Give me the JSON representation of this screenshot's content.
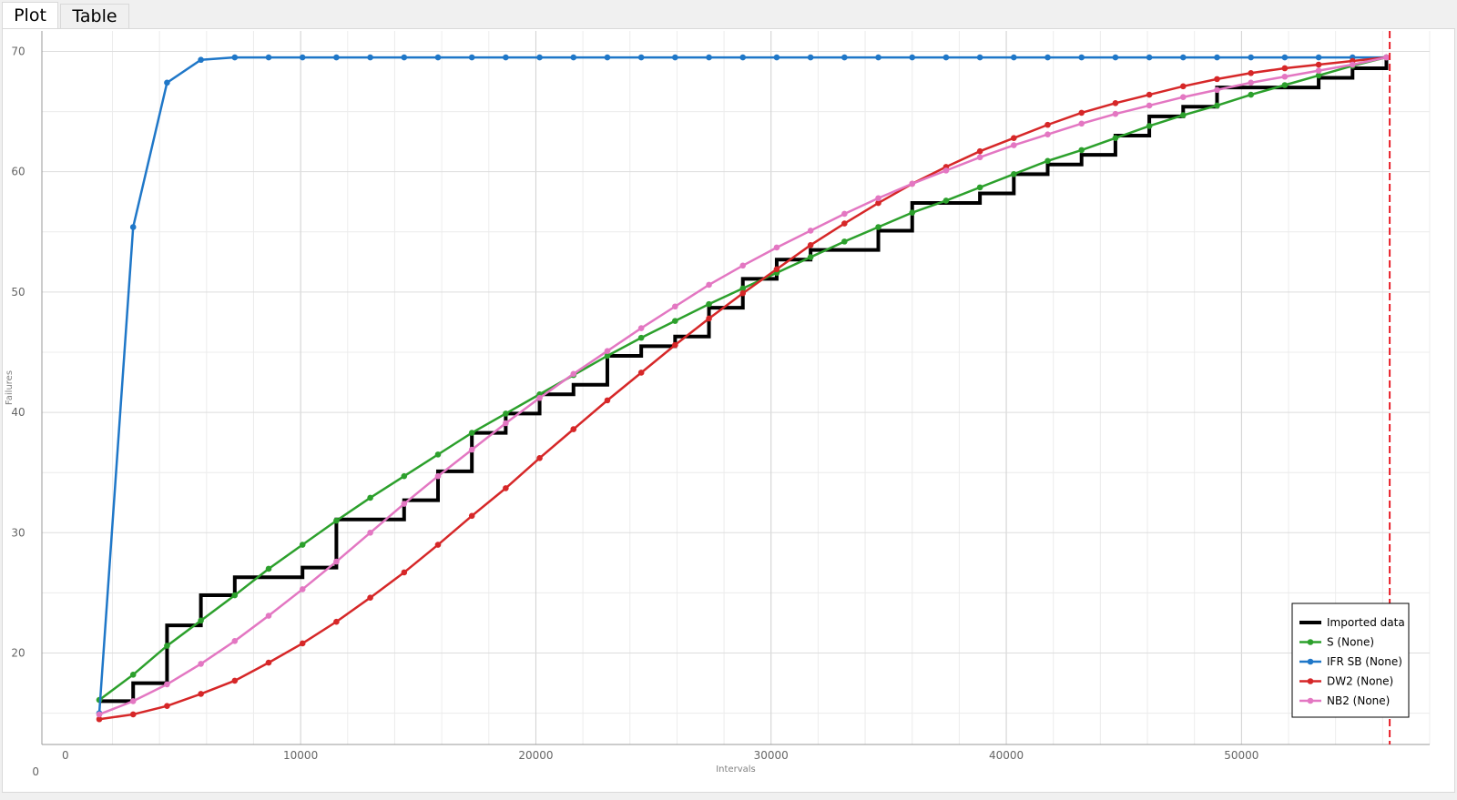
{
  "tabs": [
    {
      "label": "Plot",
      "active": true
    },
    {
      "label": "Table",
      "active": false
    }
  ],
  "chart_data": {
    "type": "line",
    "xlabel": "Intervals",
    "ylabel": "Failures",
    "xlim": [
      -1000,
      58000
    ],
    "ylim": [
      12.4,
      71.7
    ],
    "x_ticks": [
      0,
      10000,
      20000,
      30000,
      40000,
      50000
    ],
    "y_ticks": [
      20,
      30,
      40,
      50,
      60,
      70
    ],
    "x_tick_labels": [
      "0",
      "10000",
      "20000",
      "30000",
      "40000",
      "50000"
    ],
    "y_tick_labels": [
      "20",
      "30",
      "40",
      "50",
      "60",
      "70"
    ],
    "y_zero_label": "0",
    "grid": true,
    "legend_position": "bottom-right",
    "marker_line": {
      "x": 56300,
      "color": "#e8202a",
      "style": "dashed"
    },
    "series": [
      {
        "name": "Imported data",
        "color": "#000000",
        "style": "step",
        "x": [
          1440,
          2880,
          4320,
          5760,
          7200,
          8640,
          10080,
          11520,
          12960,
          14400,
          15840,
          17280,
          18720,
          20160,
          21600,
          23040,
          24480,
          25920,
          27360,
          28800,
          30240,
          31680,
          33120,
          34560,
          36000,
          37440,
          38880,
          40320,
          41760,
          43200,
          44640,
          46080,
          47520,
          48960,
          50400,
          51840,
          53280,
          54720,
          56160
        ],
        "y": [
          16,
          17.5,
          22.3,
          24.8,
          26.3,
          26.3,
          27.1,
          31.1,
          31.1,
          32.7,
          35.1,
          38.3,
          39.9,
          41.5,
          42.3,
          44.7,
          45.5,
          46.3,
          48.7,
          51.1,
          52.7,
          53.5,
          53.5,
          55.1,
          57.4,
          57.4,
          58.2,
          59.8,
          60.6,
          61.4,
          63.0,
          64.6,
          65.4,
          67.0,
          67.0,
          67.0,
          67.8,
          68.6,
          69.4
        ]
      },
      {
        "name": "S (None)",
        "color": "#2ca02c",
        "style": "line-marker",
        "x": [
          1440,
          2880,
          4320,
          5760,
          7200,
          8640,
          10080,
          11520,
          12960,
          14400,
          15840,
          17280,
          18720,
          20160,
          21600,
          23040,
          24480,
          25920,
          27360,
          28800,
          30240,
          31680,
          33120,
          34560,
          36000,
          37440,
          38880,
          40320,
          41760,
          43200,
          44640,
          46080,
          47520,
          48960,
          50400,
          51840,
          53280,
          54720,
          56160
        ],
        "y": [
          16.1,
          18.2,
          20.6,
          22.7,
          24.8,
          27.0,
          29.0,
          31.0,
          32.9,
          34.7,
          36.5,
          38.3,
          39.9,
          41.5,
          43.1,
          44.7,
          46.2,
          47.6,
          49.0,
          50.3,
          51.6,
          52.9,
          54.2,
          55.4,
          56.6,
          57.6,
          58.7,
          59.8,
          60.9,
          61.8,
          62.8,
          63.8,
          64.7,
          65.5,
          66.4,
          67.2,
          68.0,
          68.8,
          69.5
        ]
      },
      {
        "name": "IFR SB (None)",
        "color": "#1f77c8",
        "style": "line-marker",
        "x": [
          1440,
          2880,
          4320,
          5760,
          7200,
          8640,
          10080,
          11520,
          12960,
          14400,
          15840,
          17280,
          18720,
          20160,
          21600,
          23040,
          24480,
          25920,
          27360,
          28800,
          30240,
          31680,
          33120,
          34560,
          36000,
          37440,
          38880,
          40320,
          41760,
          43200,
          44640,
          46080,
          47520,
          48960,
          50400,
          51840,
          53280,
          54720,
          56160
        ],
        "y": [
          15,
          55.4,
          67.4,
          69.3,
          69.5,
          69.5,
          69.5,
          69.5,
          69.5,
          69.5,
          69.5,
          69.5,
          69.5,
          69.5,
          69.5,
          69.5,
          69.5,
          69.5,
          69.5,
          69.5,
          69.5,
          69.5,
          69.5,
          69.5,
          69.5,
          69.5,
          69.5,
          69.5,
          69.5,
          69.5,
          69.5,
          69.5,
          69.5,
          69.5,
          69.5,
          69.5,
          69.5,
          69.5,
          69.5
        ]
      },
      {
        "name": "DW2 (None)",
        "color": "#d62728",
        "style": "line-marker",
        "x": [
          1440,
          2880,
          4320,
          5760,
          7200,
          8640,
          10080,
          11520,
          12960,
          14400,
          15840,
          17280,
          18720,
          20160,
          21600,
          23040,
          24480,
          25920,
          27360,
          28800,
          30240,
          31680,
          33120,
          34560,
          36000,
          37440,
          38880,
          40320,
          41760,
          43200,
          44640,
          46080,
          47520,
          48960,
          50400,
          51840,
          53280,
          54720,
          56160
        ],
        "y": [
          14.5,
          14.9,
          15.6,
          16.6,
          17.7,
          19.2,
          20.8,
          22.6,
          24.6,
          26.7,
          29.0,
          31.4,
          33.7,
          36.2,
          38.6,
          41.0,
          43.3,
          45.6,
          47.8,
          49.9,
          51.9,
          53.9,
          55.7,
          57.4,
          59.0,
          60.4,
          61.7,
          62.8,
          63.9,
          64.9,
          65.7,
          66.4,
          67.1,
          67.7,
          68.2,
          68.6,
          68.9,
          69.2,
          69.5
        ]
      },
      {
        "name": "NB2 (None)",
        "color": "#e377c2",
        "style": "line-marker",
        "x": [
          1440,
          2880,
          4320,
          5760,
          7200,
          8640,
          10080,
          11520,
          12960,
          14400,
          15840,
          17280,
          18720,
          20160,
          21600,
          23040,
          24480,
          25920,
          27360,
          28800,
          30240,
          31680,
          33120,
          34560,
          36000,
          37440,
          38880,
          40320,
          41760,
          43200,
          44640,
          46080,
          47520,
          48960,
          50400,
          51840,
          53280,
          54720,
          56160
        ],
        "y": [
          14.9,
          16.0,
          17.4,
          19.1,
          21.0,
          23.1,
          25.3,
          27.6,
          30.0,
          32.4,
          34.7,
          36.9,
          39.1,
          41.2,
          43.2,
          45.1,
          47.0,
          48.8,
          50.6,
          52.2,
          53.7,
          55.1,
          56.5,
          57.8,
          59.0,
          60.1,
          61.2,
          62.2,
          63.1,
          64.0,
          64.8,
          65.5,
          66.2,
          66.8,
          67.4,
          67.9,
          68.4,
          68.9,
          69.5
        ]
      }
    ]
  }
}
